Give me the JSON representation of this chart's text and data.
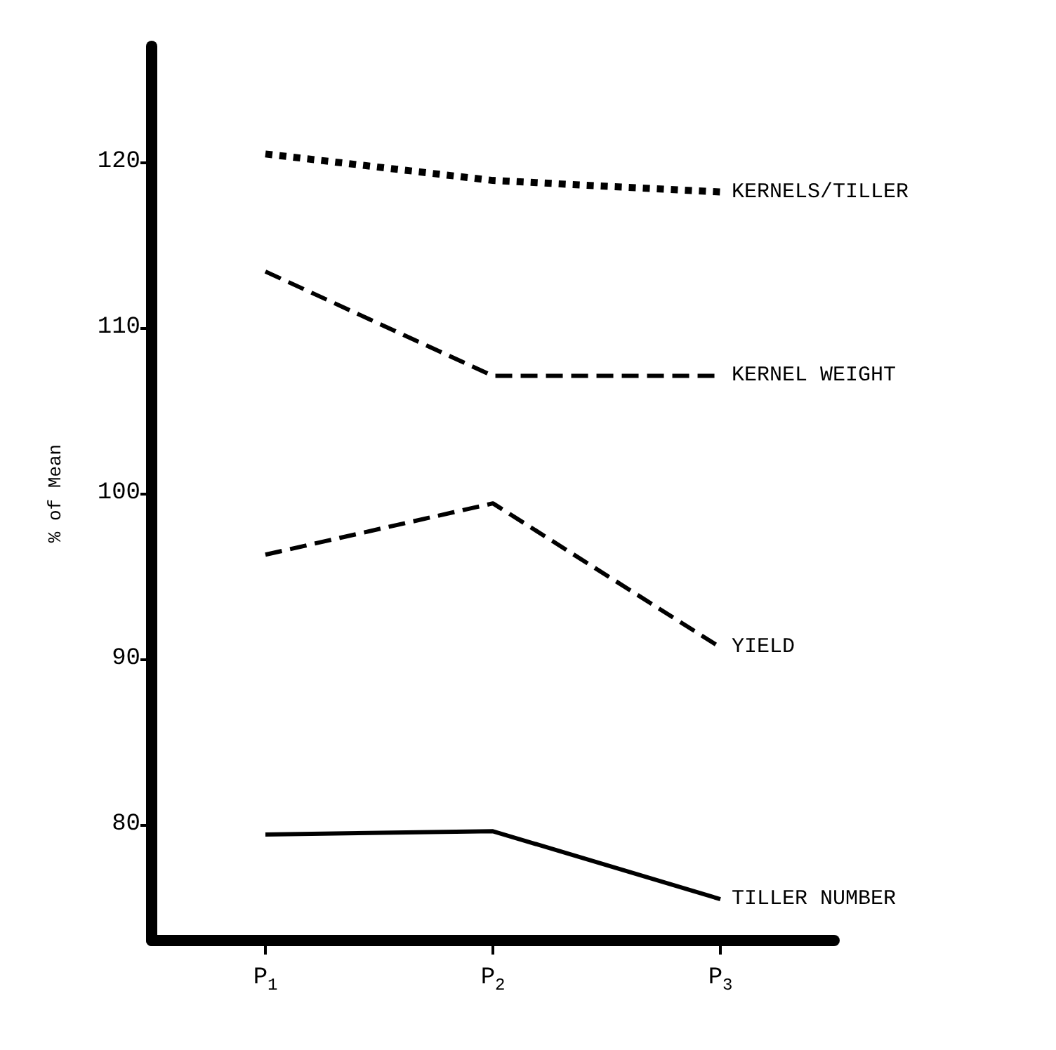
{
  "chart_data": {
    "type": "line",
    "ylabel": "% of Mean",
    "categories": [
      "P$_{1}$",
      "P$_{2}$",
      "P$_{3}$"
    ],
    "series": [
      {
        "name": "KERNELS/TILLER",
        "color": "#000000",
        "line_style": "dotted",
        "values": [
          120.5,
          118.9,
          118.2
        ]
      },
      {
        "name": "KERNEL WEIGHT",
        "color": "#000000",
        "line_style": "dashed",
        "values": [
          113.4,
          107.1,
          107.1
        ]
      },
      {
        "name": "YIELD",
        "color": "#000000",
        "line_style": "dashed",
        "values": [
          96.3,
          99.4,
          90.7
        ]
      },
      {
        "name": "TILLER NUMBER",
        "color": "#000000",
        "line_style": "solid",
        "values": [
          79.4,
          79.6,
          75.5
        ]
      }
    ],
    "ylim": [
      73,
      127
    ],
    "yticks": [
      80,
      90,
      100,
      110,
      120
    ],
    "grid": false,
    "legend": false,
    "marker": "none"
  }
}
